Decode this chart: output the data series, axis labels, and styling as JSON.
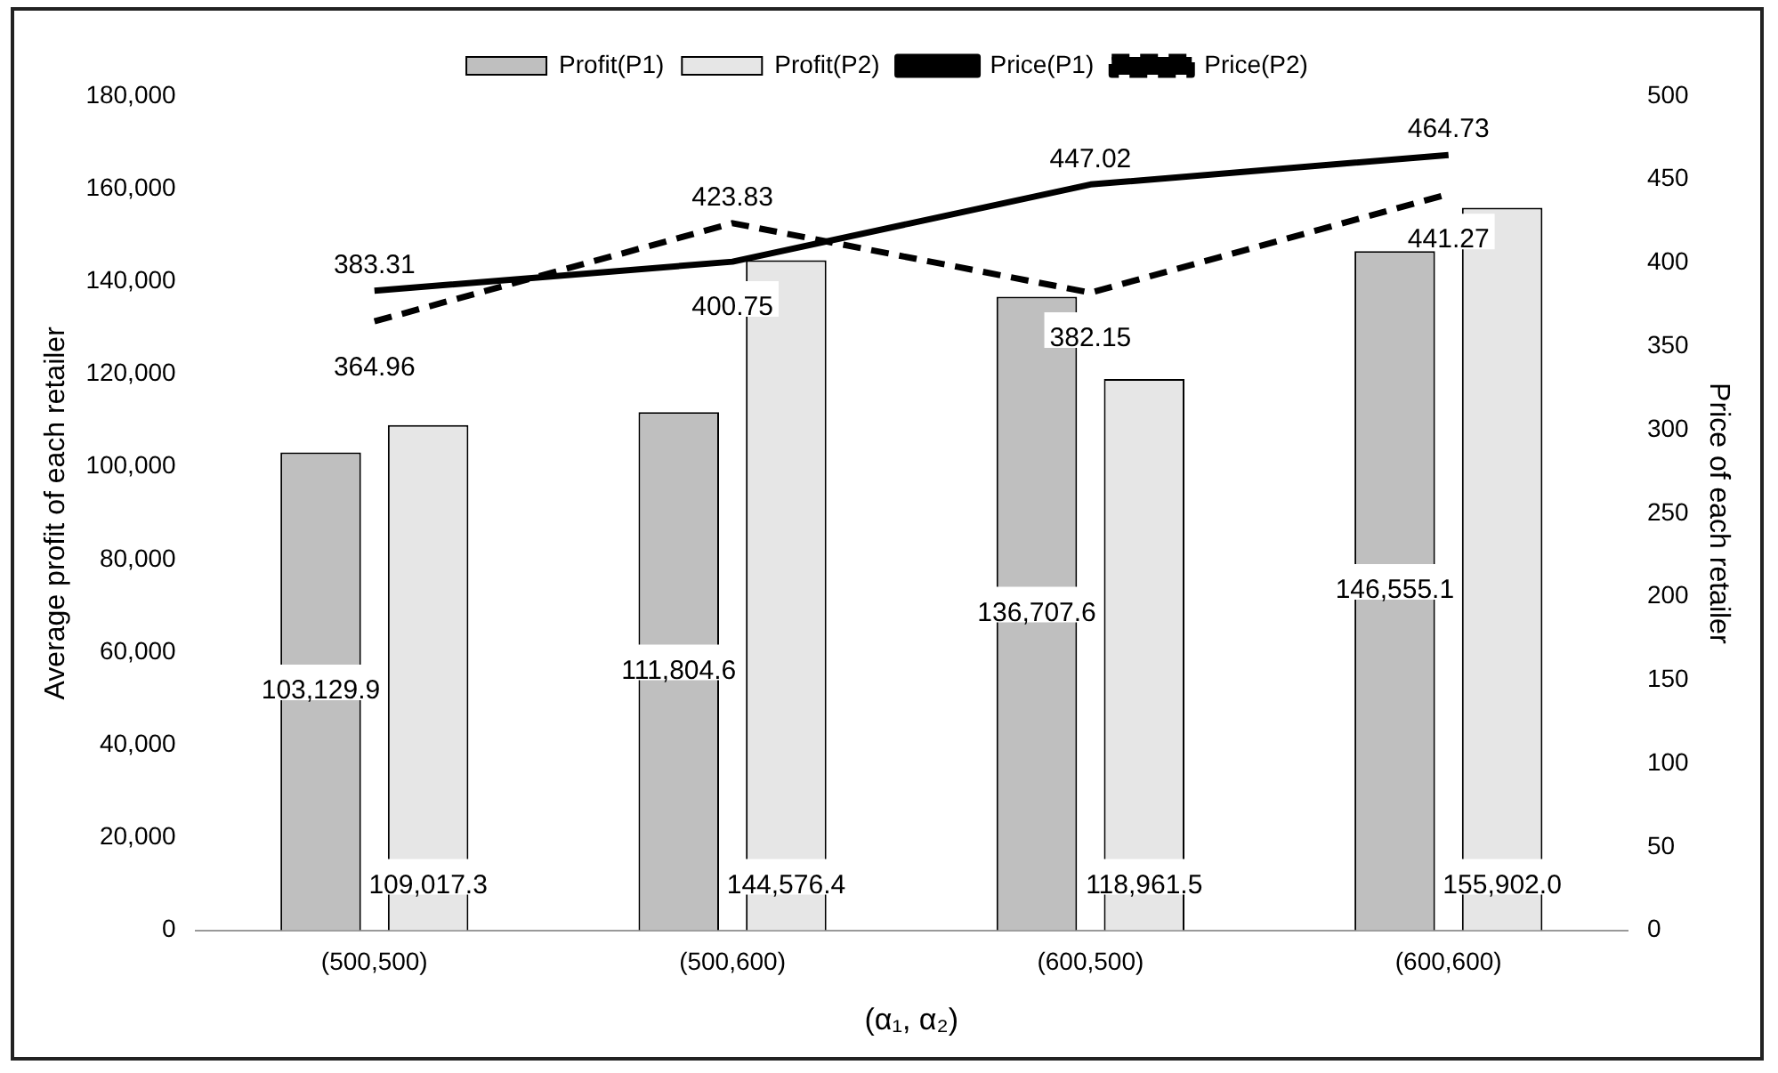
{
  "chart_data": {
    "type": "bar",
    "xlabel": "(α₁, α₂)",
    "ylabel": "Average profit of each retailer",
    "y2label": "Price of each retailer",
    "categories": [
      "(500,500)",
      "(500,600)",
      "(600,500)",
      "(600,600)"
    ],
    "series": [
      {
        "name": "Profit(P1)",
        "color": "#bfbfbf",
        "values": [
          103129.9,
          111804.6,
          136707.6,
          146555.1
        ],
        "value_labels": [
          "103,129.9",
          "111,804.6",
          "136,707.6",
          "146,555.1"
        ]
      },
      {
        "name": "Profit(P2)",
        "color": "#e6e6e6",
        "values": [
          109017.3,
          144576.4,
          118961.5,
          155902.0
        ],
        "value_labels": [
          "109,017.3",
          "144,576.4",
          "118,961.5",
          "155,902.0"
        ]
      },
      {
        "name": "Price(P1)",
        "type": "line",
        "axis": "y2",
        "color": "#000000",
        "line_style": "solid",
        "values": [
          383.31,
          400.75,
          447.02,
          464.73
        ],
        "value_labels": [
          "383.31",
          "400.75",
          "447.02",
          "464.73"
        ]
      },
      {
        "name": "Price(P2)",
        "type": "line",
        "axis": "y2",
        "color": "#000000",
        "line_style": "dashed",
        "values": [
          364.96,
          423.83,
          382.15,
          441.27
        ],
        "value_labels": [
          "364.96",
          "423.83",
          "382.15",
          "441.27"
        ]
      }
    ],
    "ylim": [
      0,
      180000
    ],
    "yticks": [
      0,
      {
        "value": 20000,
        "label": "20,000"
      },
      {
        "value": 40000,
        "label": "40,000"
      },
      {
        "value": 60000,
        "label": "60,000"
      },
      {
        "value": 80000,
        "label": "80,000"
      },
      {
        "value": 100000,
        "label": "100,000"
      },
      {
        "value": 120000,
        "label": "120,000"
      },
      {
        "value": 140000,
        "label": "140,000"
      },
      {
        "value": 160000,
        "label": "160,000"
      },
      {
        "value": 180000,
        "label": "180,000"
      }
    ],
    "y2lim": [
      0,
      500
    ],
    "y2ticks": [
      0,
      50,
      100,
      150,
      200,
      250,
      300,
      350,
      400,
      450,
      500
    ],
    "grid": false,
    "legend": "top",
    "marker": "none"
  }
}
